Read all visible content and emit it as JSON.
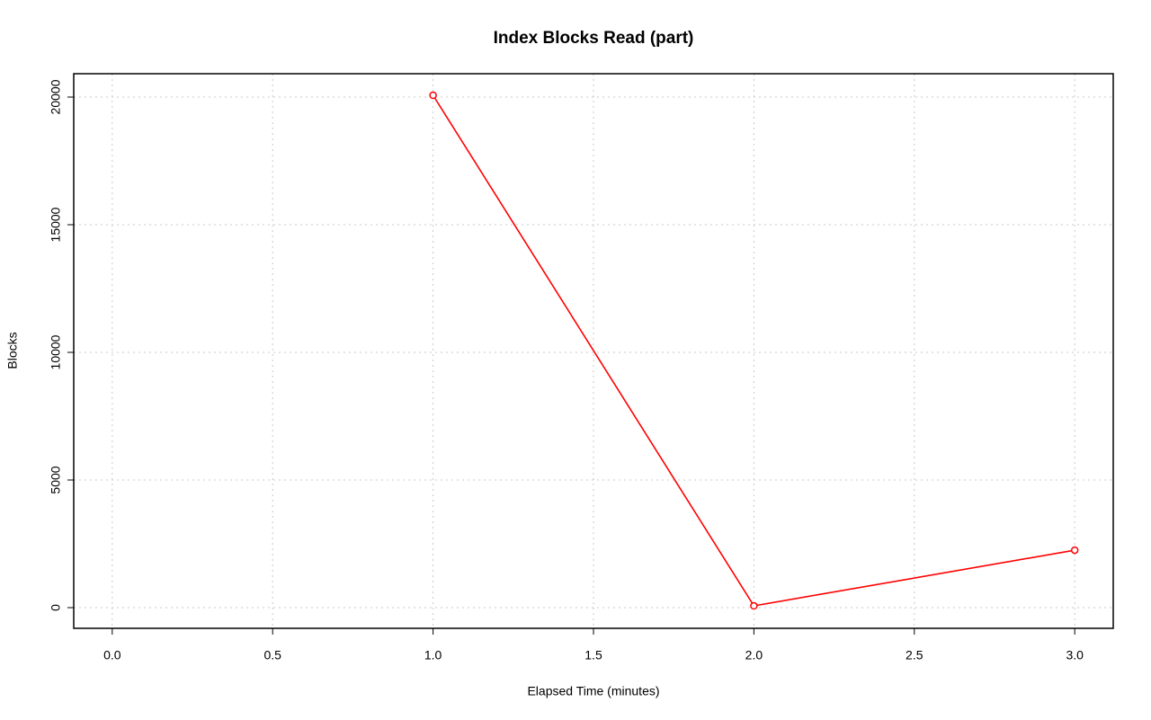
{
  "chart_data": {
    "type": "line",
    "title": "Index Blocks Read (part)",
    "x_label": "Elapsed Time (minutes)",
    "y_label": "Blocks",
    "x": [
      1,
      2,
      3
    ],
    "series": [
      {
        "name": "Index Blocks Read",
        "color": "#ff0000",
        "values": [
          20070,
          70,
          2250
        ]
      }
    ],
    "xlim": [
      -0.12,
      3.12
    ],
    "ylim": [
      -810,
      20915
    ],
    "xticks": [
      {
        "value": 0,
        "label": "0.0"
      },
      0.5,
      {
        "value": 1,
        "label": "1.0"
      },
      1.5,
      {
        "value": 2,
        "label": "2.0"
      },
      2.5,
      {
        "value": 3,
        "label": "3.0"
      }
    ],
    "yticks": [
      0,
      5000,
      10000,
      15000,
      20000
    ],
    "grid": true
  }
}
